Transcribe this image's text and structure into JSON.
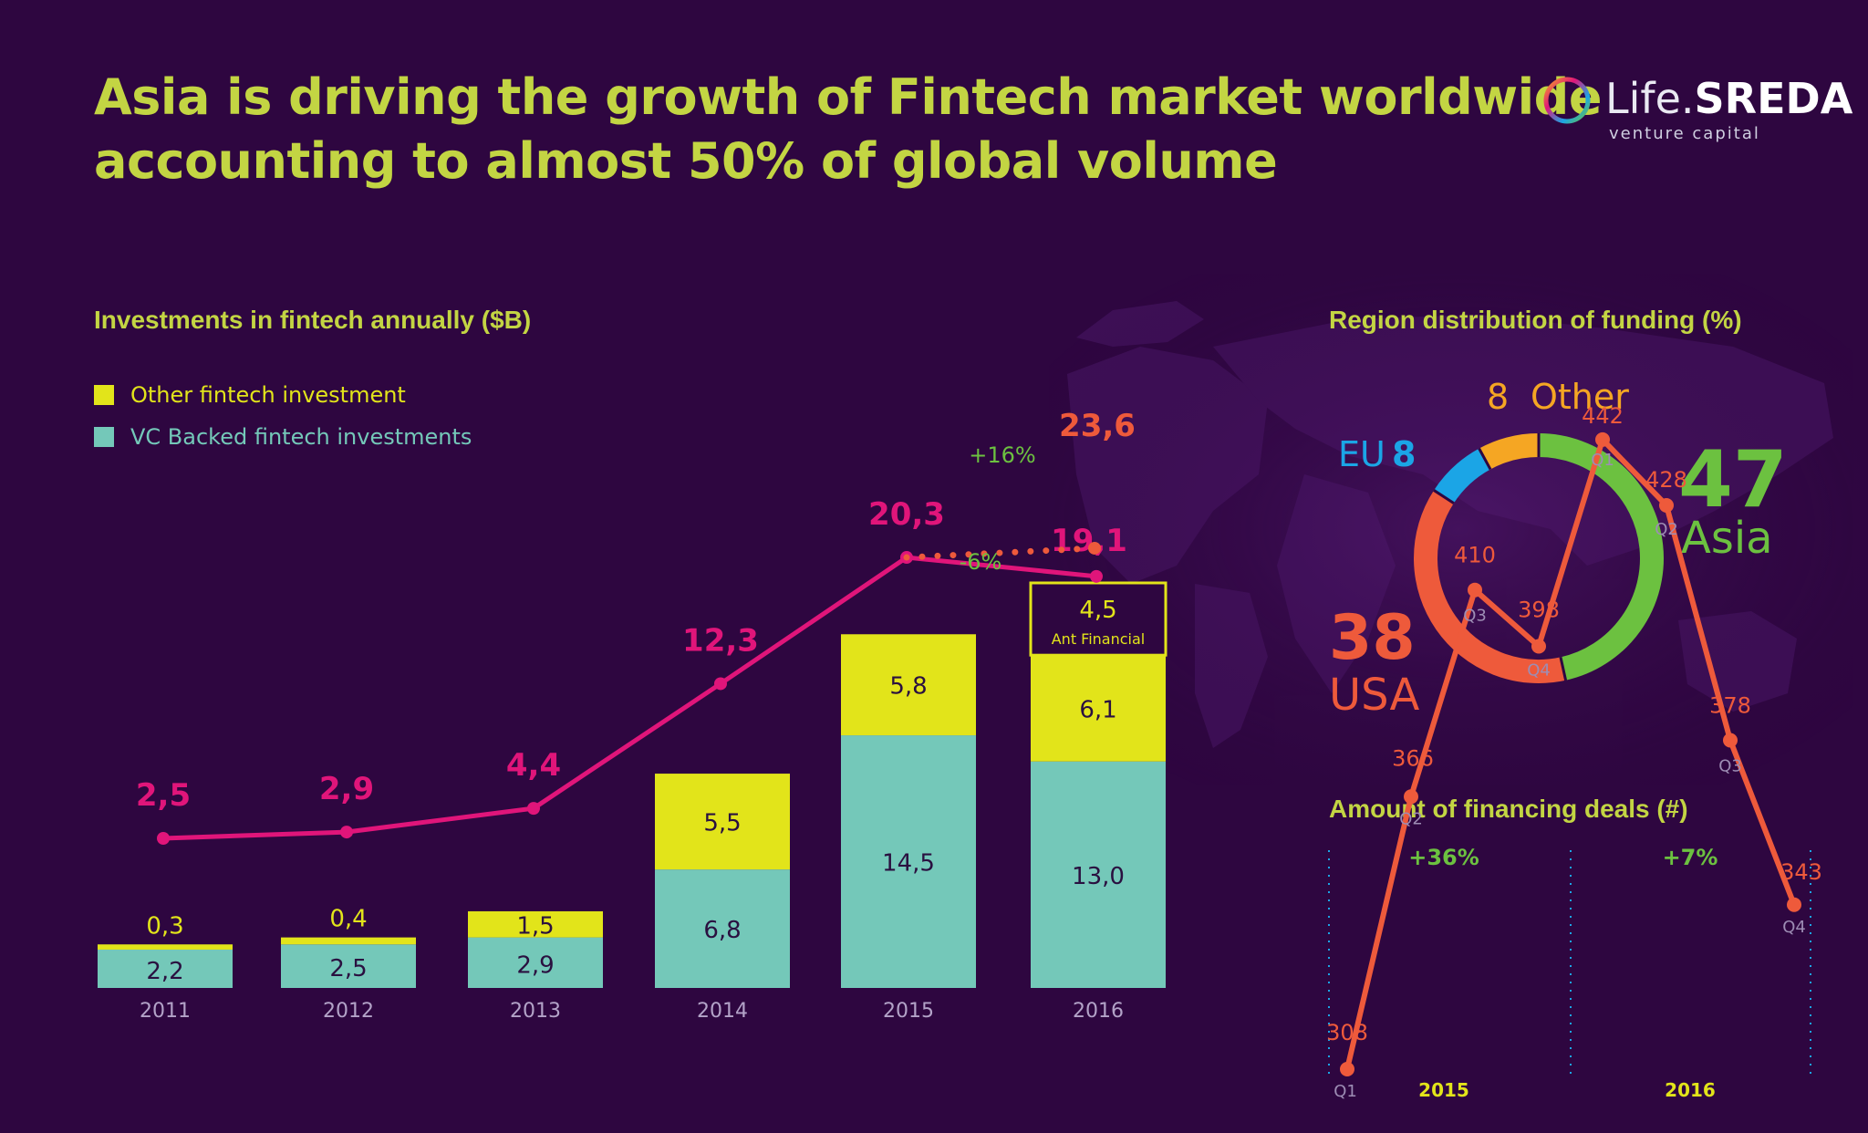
{
  "title": {
    "line1": "Asia is driving the growth of Fintech market worldwide",
    "line2": "accounting to almost 50% of global volume"
  },
  "logo": {
    "name_part1": "Life.",
    "name_part2": "SREDA",
    "subtitle": "venture capital"
  },
  "colors": {
    "background": "#2e0640",
    "title": "#c3d543",
    "line": "#e0157a",
    "vc": "#74c8b9",
    "other": "#e2e41a",
    "asia": "#6cc140",
    "usa": "#ee5a3b",
    "eu": "#1ba5e6",
    "other_region": "#f5a623",
    "deals": "#ee5a3b",
    "growth": "#6cc140"
  },
  "chart_data": [
    {
      "type": "bar",
      "title": "Investments in fintech annually ($B)",
      "stacked": true,
      "categories": [
        "2011",
        "2012",
        "2013",
        "2014",
        "2015",
        "2016"
      ],
      "series": [
        {
          "name": "VC Backed fintech investments",
          "values": [
            2.2,
            2.5,
            2.9,
            6.8,
            14.5,
            13.0
          ],
          "labels": [
            "2,2",
            "2,5",
            "2,9",
            "6,8",
            "14,5",
            "13,0"
          ]
        },
        {
          "name": "Other fintech investment",
          "values": [
            0.3,
            0.4,
            1.5,
            5.5,
            5.8,
            6.1
          ],
          "labels": [
            "0,3",
            "0,4",
            "1,5",
            "5,5",
            "5,8",
            "6,1"
          ]
        }
      ],
      "extra_segment": {
        "category": "2016",
        "value": 4.5,
        "label": "4,5",
        "note": "Ant Financial"
      },
      "total_line": {
        "values": [
          2.5,
          2.9,
          4.4,
          12.3,
          20.3,
          19.1
        ],
        "labels": [
          "2,5",
          "2,9",
          "4,4",
          "12,3",
          "20,3",
          "19,1"
        ],
        "projection": {
          "value": 23.6,
          "label": "23,6"
        },
        "change_up": "+16%",
        "change_down": "-6%"
      },
      "legend_position": "top-left"
    },
    {
      "type": "pie",
      "donut": true,
      "title": "Region distribution of funding (%)",
      "slices": [
        {
          "name": "Asia",
          "value": 47,
          "label": "47"
        },
        {
          "name": "USA",
          "value": 38,
          "label": "38"
        },
        {
          "name": "EU",
          "value": 8,
          "label": "8"
        },
        {
          "name": "Other",
          "value": 8,
          "label": "8"
        }
      ]
    },
    {
      "type": "line",
      "title": "Amount of financing deals (#)",
      "x": [
        "Q1",
        "Q2",
        "Q3",
        "Q4",
        "Q1",
        "Q2",
        "Q3",
        "Q4"
      ],
      "years": [
        {
          "label": "2015",
          "growth": "+36%"
        },
        {
          "label": "2016",
          "growth": "+7%"
        }
      ],
      "values": [
        308,
        366,
        410,
        398,
        442,
        428,
        378,
        343
      ]
    }
  ]
}
